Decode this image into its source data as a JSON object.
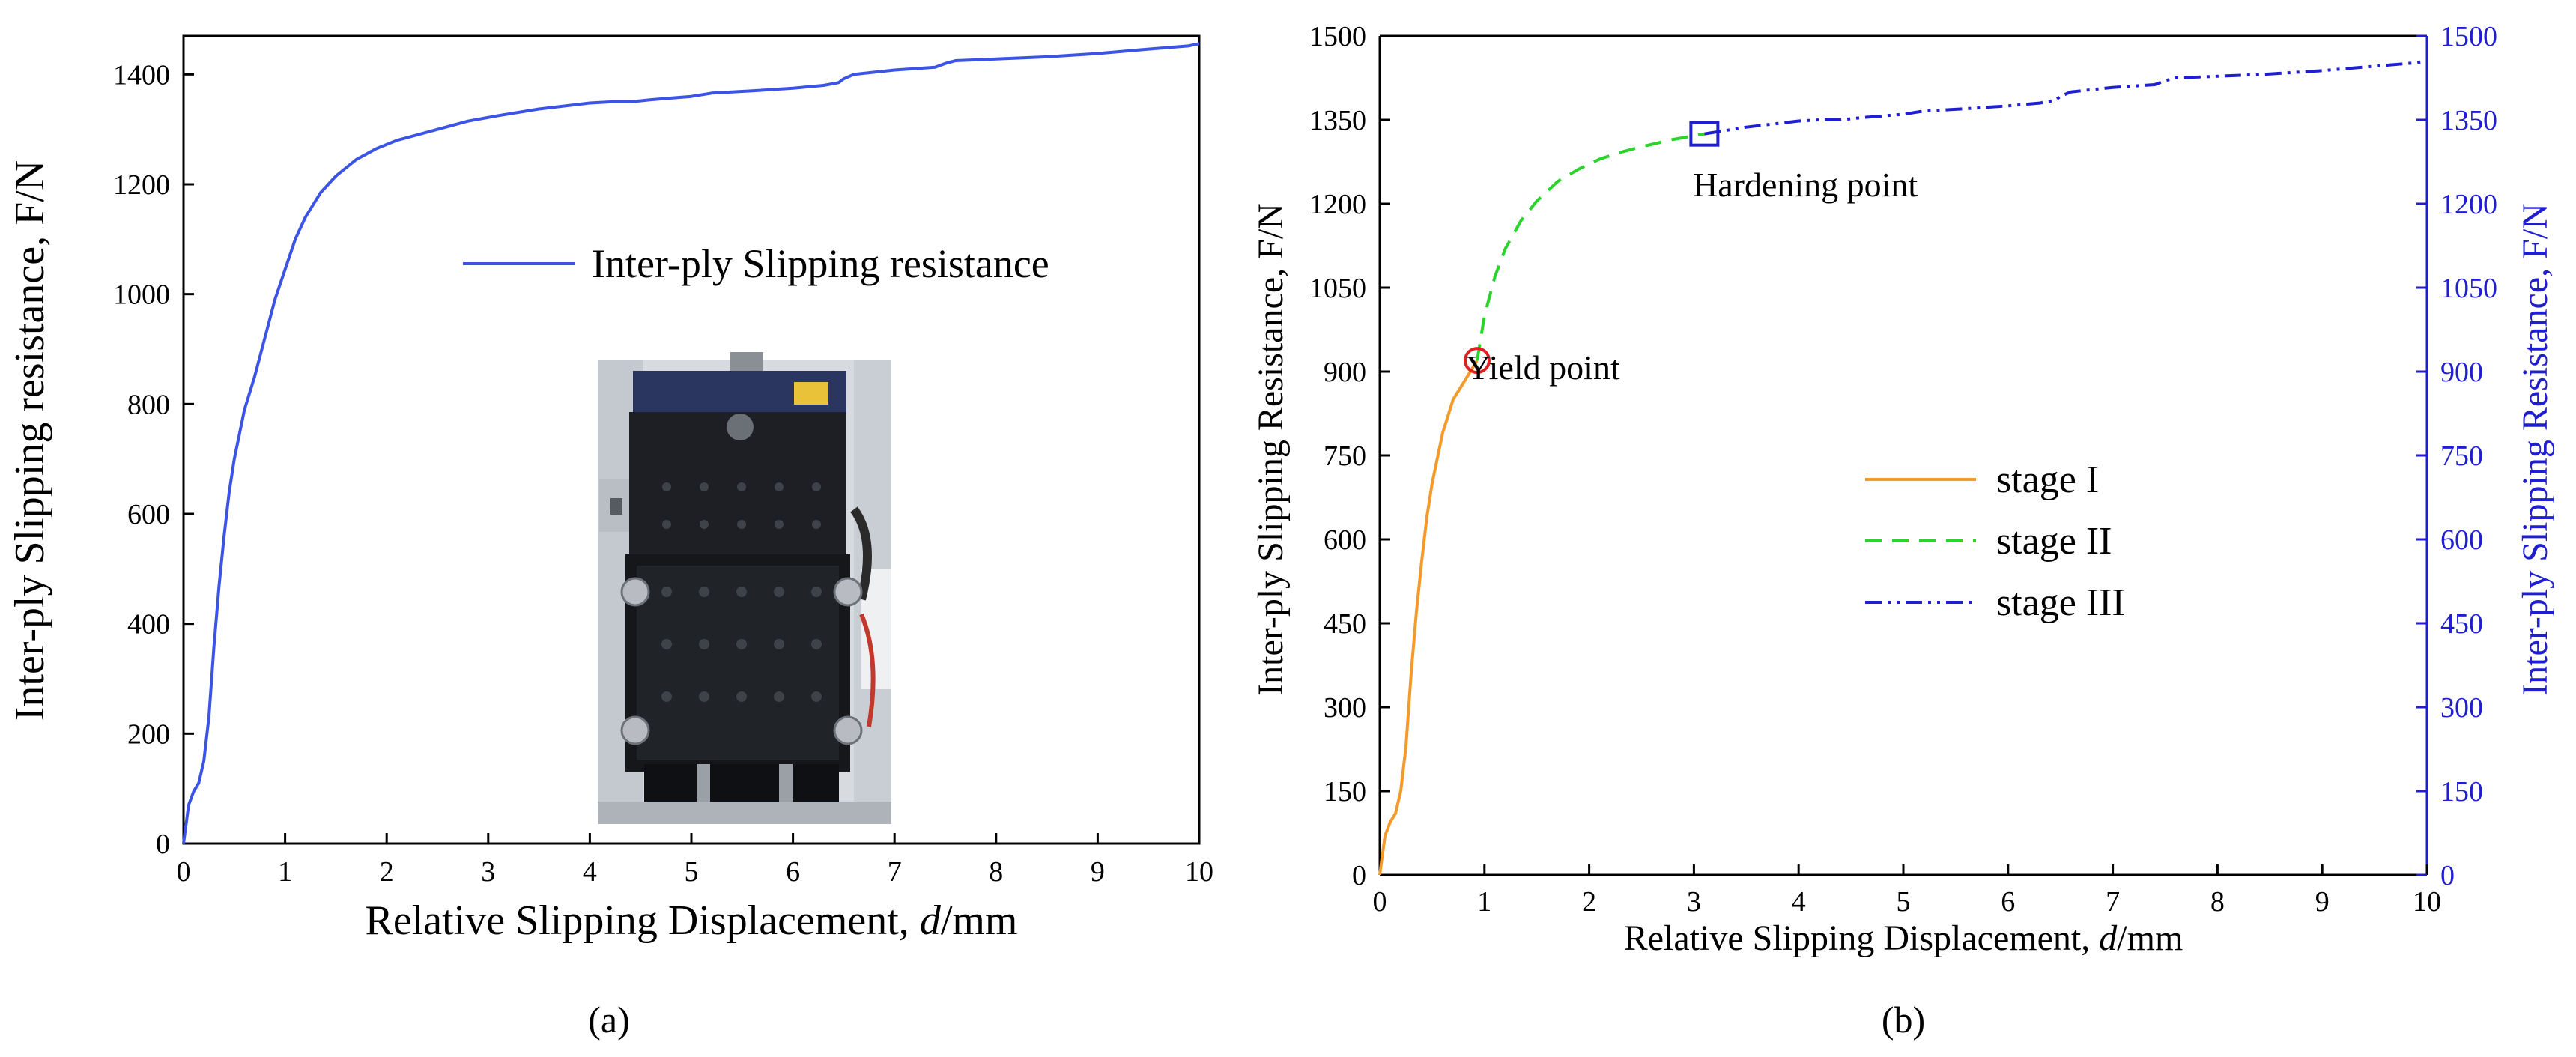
{
  "chart_data": [
    {
      "id": "a",
      "type": "line",
      "panel_label": "(a)",
      "xlabel_prefix": "Relative Slipping Displacement, ",
      "xlabel_var": "d",
      "xlabel_suffix": "/mm",
      "ylabel": "Inter-ply Slipping resistance, F/N",
      "xlim": [
        0,
        10
      ],
      "ylim": [
        0,
        1470
      ],
      "x_ticks": [
        0,
        1,
        2,
        3,
        4,
        5,
        6,
        7,
        8,
        9,
        10
      ],
      "y_ticks": [
        0,
        200,
        400,
        600,
        800,
        1000,
        1200,
        1400
      ],
      "legend": "Inter-ply Slipping resistance",
      "inset_photo": "test fixture photo",
      "series": [
        {
          "name": "Inter-ply Slipping resistance",
          "color": "#3b54e6",
          "x": [
            0,
            0.05,
            0.1,
            0.15,
            0.2,
            0.25,
            0.3,
            0.35,
            0.4,
            0.45,
            0.5,
            0.6,
            0.7,
            0.8,
            0.9,
            1.0,
            1.1,
            1.2,
            1.35,
            1.5,
            1.7,
            1.9,
            2.1,
            2.3,
            2.5,
            2.8,
            3.1,
            3.5,
            4.0,
            4.2,
            4.4,
            4.6,
            4.8,
            5.0,
            5.2,
            5.6,
            6.0,
            6.3,
            6.45,
            6.5,
            6.6,
            7.0,
            7.4,
            7.5,
            7.6,
            8.0,
            8.5,
            9.0,
            9.5,
            9.9,
            10.0
          ],
          "y": [
            0,
            70,
            95,
            110,
            150,
            230,
            360,
            470,
            560,
            640,
            700,
            790,
            850,
            920,
            990,
            1045,
            1100,
            1140,
            1185,
            1215,
            1245,
            1265,
            1280,
            1290,
            1300,
            1315,
            1325,
            1337,
            1348,
            1350,
            1350,
            1354,
            1357,
            1360,
            1366,
            1370,
            1375,
            1380,
            1385,
            1392,
            1400,
            1408,
            1413,
            1420,
            1425,
            1428,
            1432,
            1438,
            1446,
            1452,
            1456
          ]
        }
      ]
    },
    {
      "id": "b",
      "type": "line",
      "panel_label": "(b)",
      "xlabel_prefix": "Relative Slipping Displacement, ",
      "xlabel_var": "d",
      "xlabel_suffix": "/mm",
      "ylabel": "Inter-ply Slipping Resistance, F/N",
      "y2label": "Inter-ply Slipping Resistance, F/N",
      "xlim": [
        0,
        10
      ],
      "ylim": [
        0,
        1500
      ],
      "x_ticks": [
        0,
        1,
        2,
        3,
        4,
        5,
        6,
        7,
        8,
        9,
        10
      ],
      "y_ticks": [
        0,
        150,
        300,
        450,
        600,
        750,
        900,
        1050,
        1200,
        1350,
        1500
      ],
      "legend": [
        "stage I",
        "stage II",
        "stage III"
      ],
      "annotations": [
        {
          "text": "Yield point",
          "x": 0.93,
          "y": 920,
          "marker": "circle",
          "color": "#e02020"
        },
        {
          "text": "Hardening point",
          "x": 3.1,
          "y": 1325,
          "marker": "square",
          "color": "#1f1fd1"
        }
      ],
      "series": [
        {
          "name": "stage I",
          "color": "#f39a2a",
          "style": "solid",
          "x": [
            0,
            0.05,
            0.1,
            0.15,
            0.2,
            0.25,
            0.3,
            0.35,
            0.4,
            0.45,
            0.5,
            0.6,
            0.7,
            0.8,
            0.93
          ],
          "y": [
            0,
            70,
            95,
            110,
            150,
            230,
            360,
            470,
            560,
            640,
            700,
            790,
            850,
            880,
            920
          ]
        },
        {
          "name": "stage II",
          "color": "#2ad42a",
          "style": "dashed",
          "x": [
            0.93,
            1.0,
            1.1,
            1.2,
            1.35,
            1.5,
            1.7,
            1.9,
            2.1,
            2.3,
            2.5,
            2.8,
            3.1
          ],
          "y": [
            920,
            1000,
            1070,
            1120,
            1170,
            1205,
            1240,
            1262,
            1280,
            1292,
            1302,
            1315,
            1325
          ]
        },
        {
          "name": "stage III",
          "color": "#1f1fd1",
          "style": "dashdotdot",
          "x": [
            3.1,
            3.5,
            4.0,
            4.2,
            4.4,
            4.6,
            4.8,
            5.0,
            5.2,
            5.6,
            6.0,
            6.3,
            6.45,
            6.5,
            6.6,
            7.0,
            7.4,
            7.5,
            7.6,
            8.0,
            8.5,
            9.0,
            9.5,
            9.9,
            10.0
          ],
          "y": [
            1325,
            1337,
            1348,
            1350,
            1350,
            1354,
            1357,
            1360,
            1366,
            1370,
            1375,
            1380,
            1385,
            1392,
            1400,
            1408,
            1413,
            1420,
            1425,
            1428,
            1432,
            1438,
            1446,
            1452,
            1456
          ]
        }
      ]
    }
  ]
}
